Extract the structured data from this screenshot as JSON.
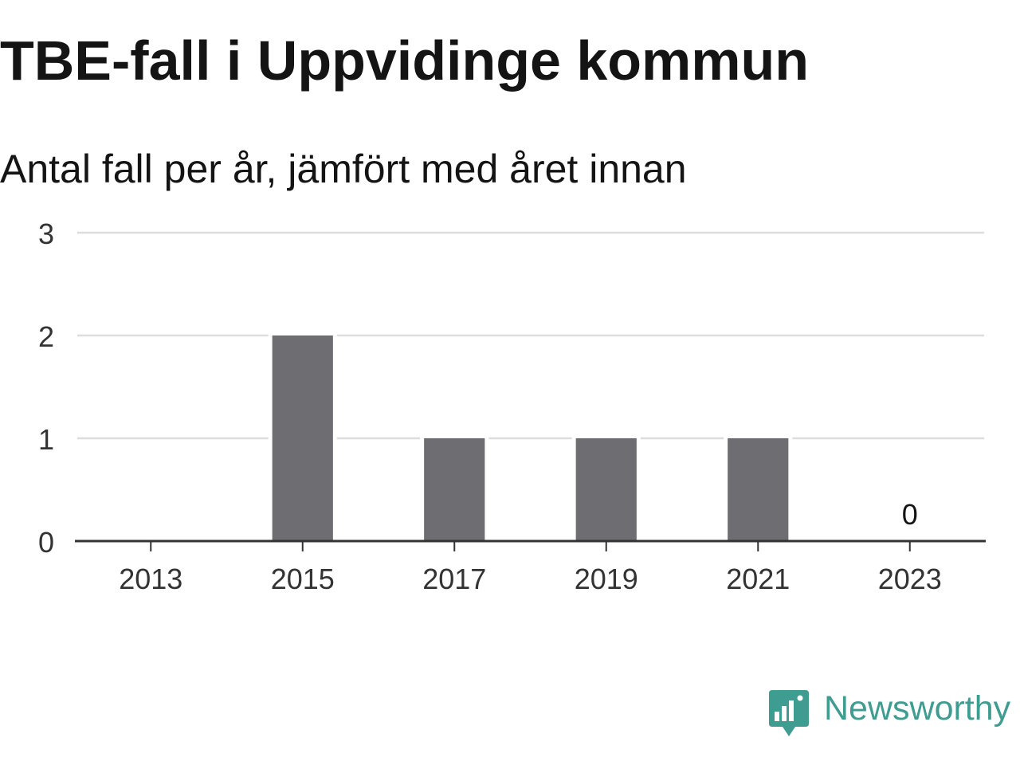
{
  "chart_data": {
    "type": "bar",
    "title": "TBE-fall i Uppvidinge kommun",
    "subtitle": "Antal fall per år, jämfört med året innan",
    "x": [
      2013,
      2014,
      2015,
      2016,
      2017,
      2018,
      2019,
      2020,
      2021,
      2022,
      2023
    ],
    "values": [
      0,
      0,
      2,
      0,
      1,
      0,
      1,
      0,
      1,
      0,
      0
    ],
    "x_ticks": [
      2013,
      2015,
      2017,
      2019,
      2021,
      2023
    ],
    "y_ticks": [
      0,
      1,
      2,
      3
    ],
    "xlim": [
      2012,
      2024
    ],
    "ylim": [
      0,
      3
    ],
    "data_labels": [
      {
        "x": 2023,
        "value": 0,
        "text": "0"
      }
    ],
    "grid": true,
    "legend": "none"
  },
  "logo": {
    "text": "Newsworthy",
    "icon": "newsworthy-logo-icon"
  },
  "colors": {
    "title": "#141414",
    "bar": "#6e6d72",
    "grid": "#dddddd",
    "axis": "#333333",
    "tick_label": "#333333",
    "data_label": "#141414",
    "logo": "#3f9c90"
  }
}
